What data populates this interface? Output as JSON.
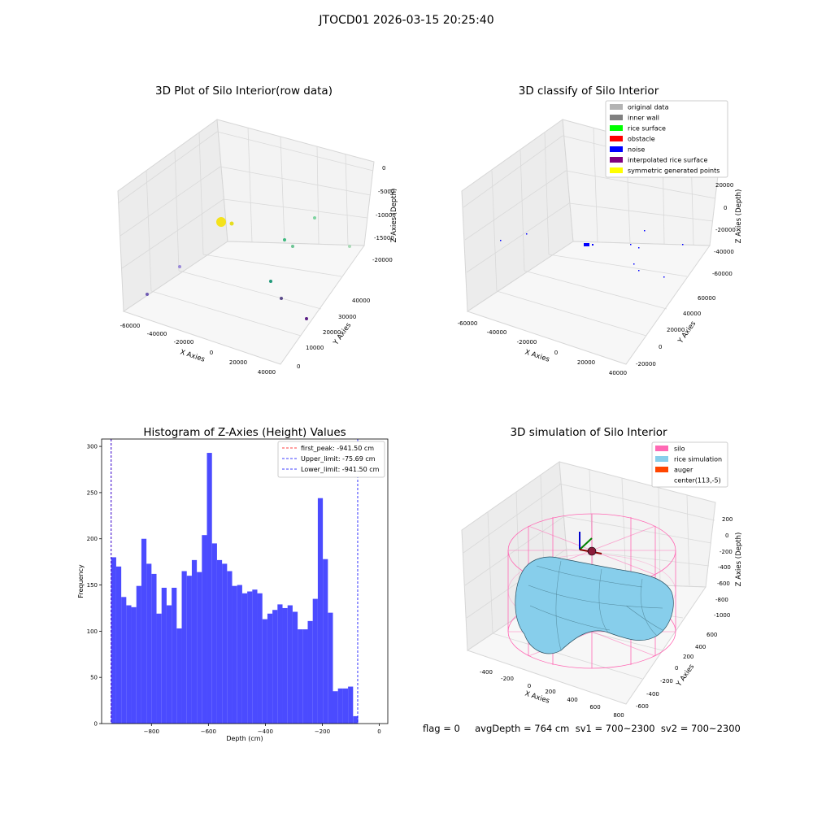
{
  "figure": {
    "suptitle": "JTOCD01 2026-03-15 20:25:40",
    "status_line": "flag = 0     avgDepth = 764 cm  sv1 = 700~2300  sv2 = 700~2300"
  },
  "panels": {
    "raw": {
      "title": "3D Plot of Silo Interior(row data)",
      "xlabel": "X Axies",
      "ylabel": "Y Axies",
      "zlabel": "Z Axies (Depth)",
      "xticks": [
        "-60000",
        "-40000",
        "-20000",
        "0",
        "20000",
        "40000"
      ],
      "yticks": [
        "0",
        "10000",
        "20000",
        "30000",
        "40000"
      ],
      "zticks": [
        "0",
        "-5000",
        "-10000",
        "-15000",
        "-20000"
      ]
    },
    "classify": {
      "title": "3D classify of Silo Interior",
      "xlabel": "X Axies",
      "ylabel": "Y Axies",
      "zlabel": "Z Axies (Depth)",
      "xticks": [
        "-60000",
        "-40000",
        "-20000",
        "0",
        "20000",
        "40000"
      ],
      "yticks": [
        "-20000",
        "0",
        "20000",
        "40000",
        "60000"
      ],
      "zticks": [
        "20000",
        "0",
        "-20000",
        "-40000",
        "-60000"
      ],
      "legend": [
        {
          "label": "original data",
          "color": "#b3b3b3"
        },
        {
          "label": "inner wall",
          "color": "#808080"
        },
        {
          "label": "rice surface",
          "color": "#00ff00"
        },
        {
          "label": "obstacle",
          "color": "#ff0000"
        },
        {
          "label": "noise",
          "color": "#0000ff"
        },
        {
          "label": "interpolated rice surface",
          "color": "#800080"
        },
        {
          "label": "symmetric generated points",
          "color": "#ffff00"
        }
      ]
    },
    "simulation": {
      "title": "3D simulation of Silo Interior",
      "xlabel": "X Axies",
      "ylabel": "Y Axies",
      "zlabel": "Z Axies (Depth)",
      "xticks": [
        "-400",
        "-200",
        "0",
        "200",
        "400",
        "600",
        "800"
      ],
      "yticks": [
        "-600",
        "-400",
        "-200",
        "0",
        "200",
        "400",
        "600"
      ],
      "zticks": [
        "200",
        "0",
        "-200",
        "-400",
        "-600",
        "-800",
        "-1000"
      ],
      "legend": [
        {
          "label": "silo",
          "color": "#ff69b4"
        },
        {
          "label": "rice simulation",
          "color": "#87ceeb"
        },
        {
          "label": "auger",
          "color": "#ff4500"
        },
        {
          "label": "center(113,-5)",
          "color": "none"
        }
      ]
    }
  },
  "chart_data": [
    {
      "type": "scatter",
      "title": "3D Plot of Silo Interior(row data)",
      "xlabel": "X Axies",
      "ylabel": "Y Axies",
      "zlabel": "Z Axies (Depth)",
      "xlim": [
        -65000,
        45000
      ],
      "ylim": [
        0,
        45000
      ],
      "zlim": [
        -22000,
        0
      ],
      "grid": true
    },
    {
      "type": "scatter",
      "title": "3D classify of Silo Interior",
      "xlabel": "X Axies",
      "ylabel": "Y Axies",
      "zlabel": "Z Axies (Depth)",
      "xlim": [
        -65000,
        45000
      ],
      "ylim": [
        -25000,
        65000
      ],
      "zlim": [
        -65000,
        25000
      ],
      "grid": true,
      "legend_position": "top-right"
    },
    {
      "type": "bar",
      "title": "Histogram of Z-Axies (Height) Values",
      "xlabel": "Depth (cm)",
      "ylabel": "Frequency",
      "xlim": [
        -975,
        30
      ],
      "ylim": [
        0,
        308
      ],
      "xticks": [
        -800,
        -600,
        -400,
        -200,
        0
      ],
      "yticks": [
        0,
        50,
        100,
        150,
        200,
        250,
        300
      ],
      "bin_start": -941.5,
      "bin_width": 17.7,
      "color": "#4b4bff",
      "values": [
        180,
        170,
        137,
        128,
        126,
        149,
        200,
        173,
        162,
        119,
        147,
        128,
        147,
        103,
        165,
        160,
        177,
        164,
        204,
        293,
        195,
        177,
        173,
        165,
        149,
        150,
        141,
        143,
        145,
        141,
        113,
        119,
        123,
        129,
        125,
        128,
        121,
        102,
        102,
        111,
        135,
        244,
        178,
        120,
        35,
        38,
        38,
        40,
        8
      ],
      "vlines": [
        {
          "label": "first_peak: -941.50 cm",
          "x": -941.5,
          "color": "#ff0000",
          "style": "dashed"
        },
        {
          "label": "Upper_limit: -75.69 cm",
          "x": -75.69,
          "color": "#0000ff",
          "style": "dashed"
        },
        {
          "label": "Lower_limit: -941.50 cm",
          "x": -941.5,
          "color": "#0000ff",
          "style": "dashed"
        }
      ],
      "legend_position": "top-right"
    },
    {
      "type": "surface",
      "title": "3D simulation of Silo Interior",
      "xlabel": "X Axies",
      "ylabel": "Y Axies",
      "zlabel": "Z Axies (Depth)",
      "xlim": [
        -500,
        850
      ],
      "ylim": [
        -700,
        700
      ],
      "zlim": [
        -1050,
        350
      ],
      "grid": true,
      "legend_position": "top-right"
    }
  ]
}
